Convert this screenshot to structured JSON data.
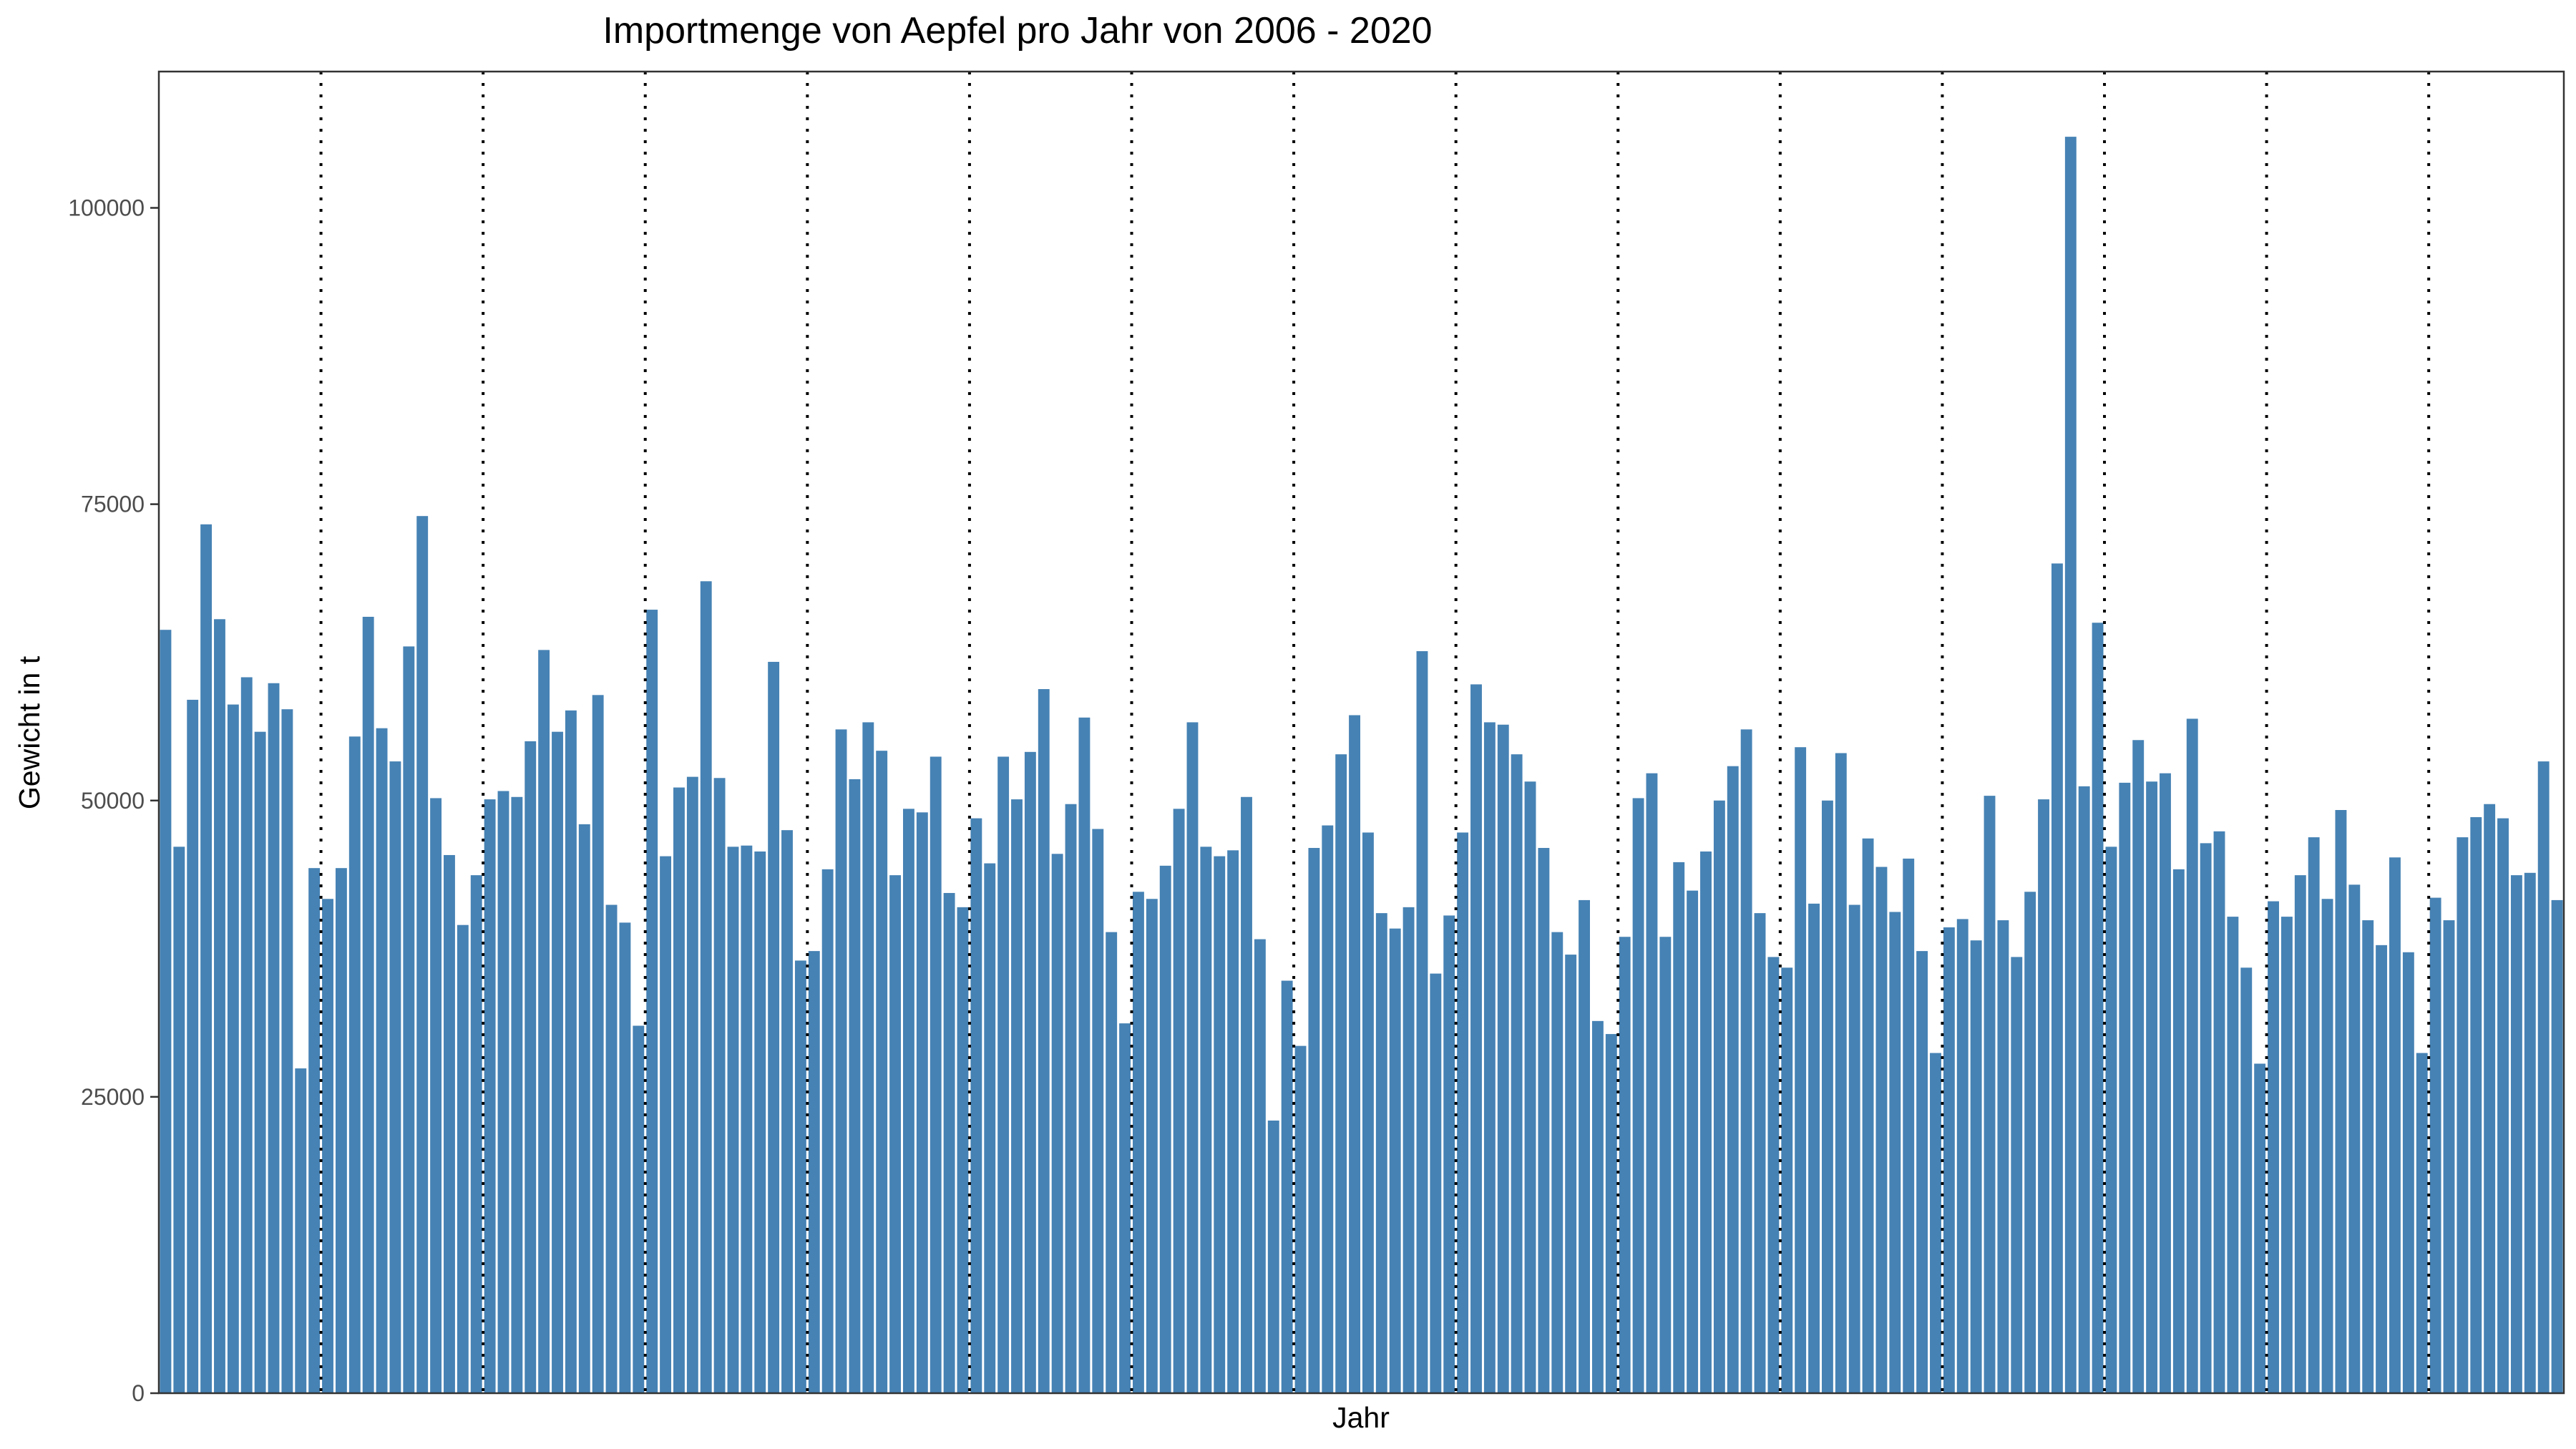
{
  "chart_data": {
    "type": "bar",
    "title": "Importmenge von Aepfel pro Jahr von 2006 - 2020",
    "xlabel": "Jahr",
    "ylabel": "Gewicht in t",
    "ylim": [
      0,
      111500
    ],
    "yticks": [
      0,
      25000,
      50000,
      75000,
      100000
    ],
    "ytick_labels": [
      "0",
      "25000",
      "50000",
      "75000",
      "100000"
    ],
    "bar_color": "#4682b4",
    "grid": false,
    "period_separators": "dotted vertical lines between years (12 months per year)",
    "x_period": "monthly, 2006 - 2020",
    "values": [
      64400,
      46100,
      58500,
      73300,
      65300,
      58100,
      60400,
      55800,
      59900,
      57700,
      27400,
      44300,
      41700,
      44300,
      55400,
      65500,
      56100,
      53300,
      63000,
      74000,
      50200,
      45400,
      39500,
      43700,
      50100,
      50800,
      50300,
      55000,
      62700,
      55800,
      57600,
      48000,
      58900,
      41200,
      39700,
      31000,
      66100,
      45300,
      51100,
      52000,
      68500,
      51900,
      46100,
      46200,
      45700,
      61700,
      47500,
      36500,
      37300,
      44200,
      56000,
      51800,
      56600,
      54200,
      43700,
      49300,
      49000,
      53700,
      42200,
      41000,
      48500,
      44700,
      53700,
      50100,
      54100,
      59400,
      45500,
      49700,
      57000,
      47600,
      38900,
      31200,
      42300,
      41700,
      44500,
      49300,
      56600,
      46100,
      45300,
      45800,
      50300,
      38300,
      23000,
      34800,
      29300,
      46000,
      47900,
      53900,
      57200,
      47300,
      40500,
      39200,
      41000,
      62600,
      35400,
      40300,
      47300,
      59800,
      56600,
      56400,
      53900,
      51600,
      46000,
      38900,
      37000,
      41600,
      31400,
      30300,
      38500,
      50200,
      52300,
      38500,
      44800,
      42400,
      45700,
      50000,
      52900,
      56000,
      40500,
      36800,
      35900,
      54500,
      41300,
      50000,
      54000,
      41200,
      46800,
      44400,
      40600,
      45100,
      37300,
      28700,
      39300,
      40000,
      38200,
      50400,
      39900,
      36800,
      42300,
      50100,
      70000,
      106000,
      51200,
      65000,
      46100,
      51500,
      55100,
      51600,
      52300,
      44200,
      56900,
      46400,
      47400,
      40200,
      35900,
      27800,
      41500,
      40200,
      43700,
      46900,
      41700,
      49200,
      42900,
      39900,
      37800,
      45200,
      37200,
      28700,
      41800,
      39900,
      46900,
      48600,
      49700,
      48500,
      43700,
      43900,
      53300,
      41600
    ]
  }
}
